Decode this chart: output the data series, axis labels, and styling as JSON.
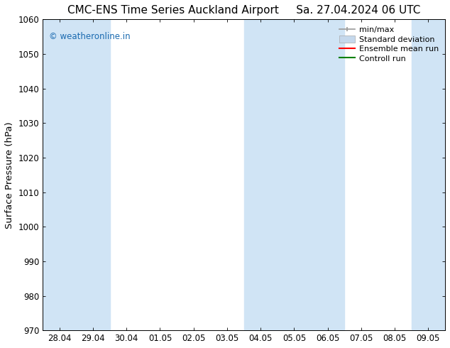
{
  "title_left": "CMC-ENS Time Series Auckland Airport",
  "title_right": "Sa. 27.04.2024 06 UTC",
  "ylabel": "Surface Pressure (hPa)",
  "ylim": [
    970,
    1060
  ],
  "yticks": [
    970,
    980,
    990,
    1000,
    1010,
    1020,
    1030,
    1040,
    1050,
    1060
  ],
  "x_tick_labels": [
    "28.04",
    "29.04",
    "30.04",
    "01.05",
    "02.05",
    "03.05",
    "04.05",
    "05.05",
    "06.05",
    "07.05",
    "08.05",
    "09.05"
  ],
  "watermark": "© weatheronline.in",
  "watermark_color": "#1a6ab0",
  "background_color": "#ffffff",
  "plot_bg_color": "#ffffff",
  "shaded_color": "#d0e4f5",
  "legend_labels": [
    "min/max",
    "Standard deviation",
    "Ensemble mean run",
    "Controll run"
  ],
  "legend_colors": [
    "#999999",
    "#c5d8ec",
    "#ff0000",
    "#008000"
  ],
  "title_fontsize": 11,
  "tick_fontsize": 8.5,
  "ylabel_fontsize": 9.5,
  "legend_fontsize": 8
}
